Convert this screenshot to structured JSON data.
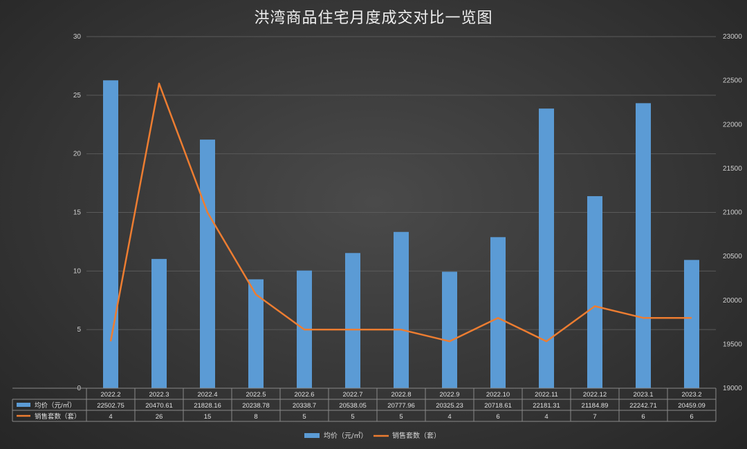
{
  "chart_data": {
    "type": "bar",
    "title": "洪湾商品住宅月度成交对比一览图",
    "categories": [
      "2022.2",
      "2022.3",
      "2022.4",
      "2022.5",
      "2022.6",
      "2022.7",
      "2022.8",
      "2022.9",
      "2022.10",
      "2022.11",
      "2022.12",
      "2023.1",
      "2023.2"
    ],
    "series": [
      {
        "name": "均价（元/㎡）",
        "type": "bar",
        "axis": "right",
        "color": "#5b9bd5",
        "values": [
          22502.75,
          20470.61,
          21828.16,
          20238.78,
          20338.7,
          20538.05,
          20777.96,
          20325.23,
          20718.61,
          22181.31,
          21184.89,
          22242.71,
          20459.09
        ],
        "labels": [
          "22502.75",
          "20470.61",
          "21828.16",
          "20238.78",
          "20338.7",
          "20538.05",
          "20777.96",
          "20325.23",
          "20718.61",
          "22181.31",
          "21184.89",
          "22242.71",
          "20459.09"
        ]
      },
      {
        "name": "销售套数（套）",
        "type": "line",
        "axis": "left",
        "color": "#ed7d31",
        "values": [
          4,
          26,
          15,
          8,
          5,
          5,
          5,
          4,
          6,
          4,
          7,
          6,
          6
        ],
        "labels": [
          "4",
          "26",
          "15",
          "8",
          "5",
          "5",
          "5",
          "4",
          "6",
          "4",
          "7",
          "6",
          "6"
        ]
      }
    ],
    "y_left": {
      "min": 0,
      "max": 30,
      "ticks": [
        "0",
        "5",
        "10",
        "15",
        "20",
        "25",
        "30"
      ]
    },
    "y_right": {
      "min": 19000,
      "max": 23000,
      "ticks": [
        "19000",
        "19500",
        "20000",
        "20500",
        "21000",
        "21500",
        "22000",
        "22500",
        "23000"
      ]
    },
    "grid": true,
    "legend": "bottom",
    "data_table": true
  }
}
